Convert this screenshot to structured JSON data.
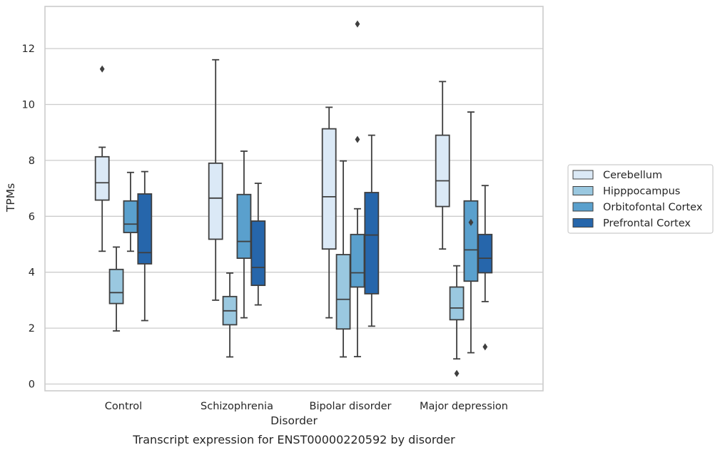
{
  "chart_data": {
    "type": "box",
    "caption": "Transcript expression for ENST00000220592 by disorder",
    "xlabel": "Disorder",
    "ylabel": "TPMs",
    "categories": [
      "Control",
      "Schizophrenia",
      "Bipolar disorder",
      "Major depression"
    ],
    "ylim": [
      -0.2,
      13.3
    ],
    "yticks": [
      0,
      2,
      4,
      6,
      8,
      10,
      12
    ],
    "grid": "horizontal",
    "legend_position": "right",
    "series": [
      {
        "name": "Cerebellum",
        "color": "#dbe9f6",
        "boxes": [
          {
            "whisker_low": 4.75,
            "q1": 6.58,
            "median": 7.2,
            "q3": 8.13,
            "whisker_high": 8.47,
            "outliers": [
              11.27
            ]
          },
          {
            "whisker_low": 3.0,
            "q1": 5.18,
            "median": 6.65,
            "q3": 7.9,
            "whisker_high": 11.6,
            "outliers": []
          },
          {
            "whisker_low": 2.37,
            "q1": 4.83,
            "median": 6.7,
            "q3": 9.13,
            "whisker_high": 9.9,
            "outliers": []
          },
          {
            "whisker_low": 4.83,
            "q1": 6.35,
            "median": 7.27,
            "q3": 8.9,
            "whisker_high": 10.82,
            "outliers": []
          }
        ]
      },
      {
        "name": "Hipppocampus",
        "color": "#9ac8e0",
        "boxes": [
          {
            "whisker_low": 1.9,
            "q1": 2.88,
            "median": 3.27,
            "q3": 4.1,
            "whisker_high": 4.9,
            "outliers": []
          },
          {
            "whisker_low": 0.97,
            "q1": 2.12,
            "median": 2.62,
            "q3": 3.13,
            "whisker_high": 3.97,
            "outliers": []
          },
          {
            "whisker_low": 0.97,
            "q1": 1.97,
            "median": 3.03,
            "q3": 4.63,
            "whisker_high": 7.98,
            "outliers": []
          },
          {
            "whisker_low": 0.9,
            "q1": 2.3,
            "median": 2.72,
            "q3": 3.47,
            "whisker_high": 4.23,
            "outliers": [
              0.38
            ]
          }
        ]
      },
      {
        "name": "Orbitofontal Cortex",
        "color": "#5aa0cd",
        "boxes": [
          {
            "whisker_low": 4.75,
            "q1": 5.42,
            "median": 5.72,
            "q3": 6.55,
            "whisker_high": 7.57,
            "outliers": []
          },
          {
            "whisker_low": 2.37,
            "q1": 4.5,
            "median": 5.1,
            "q3": 6.78,
            "whisker_high": 8.33,
            "outliers": []
          },
          {
            "whisker_low": 0.98,
            "q1": 3.47,
            "median": 3.98,
            "q3": 5.35,
            "whisker_high": 6.27,
            "outliers": [
              8.75,
              12.88
            ]
          },
          {
            "whisker_low": 1.12,
            "q1": 3.68,
            "median": 4.8,
            "q3": 6.55,
            "whisker_high": 9.73,
            "outliers": [
              5.78
            ]
          }
        ]
      },
      {
        "name": "Prefrontal Cortex",
        "color": "#2666ab",
        "boxes": [
          {
            "whisker_low": 2.27,
            "q1": 4.3,
            "median": 4.7,
            "q3": 6.8,
            "whisker_high": 7.6,
            "outliers": []
          },
          {
            "whisker_low": 2.83,
            "q1": 3.53,
            "median": 4.17,
            "q3": 5.83,
            "whisker_high": 7.18,
            "outliers": []
          },
          {
            "whisker_low": 2.07,
            "q1": 3.23,
            "median": 5.33,
            "q3": 6.85,
            "whisker_high": 8.9,
            "outliers": []
          },
          {
            "whisker_low": 2.95,
            "q1": 3.98,
            "median": 4.5,
            "q3": 5.35,
            "whisker_high": 7.1,
            "outliers": [
              1.33
            ]
          }
        ]
      }
    ]
  }
}
